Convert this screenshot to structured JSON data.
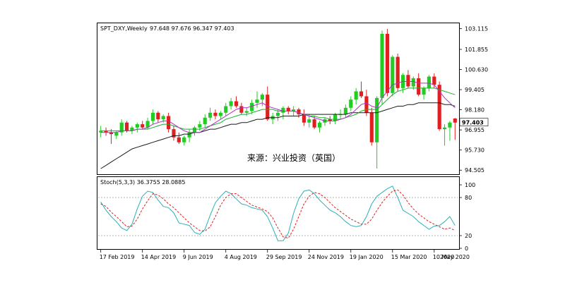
{
  "chart_data": [
    {
      "type": "candlestick",
      "symbol_label": "SPT_DXY,Weekly",
      "ohlc_label": "97.648 97.676 96.347 97.403",
      "watermark": "来源：兴业投资（英国）",
      "last_price_label": "97.403",
      "y_ticks": [
        "103.115",
        "101.855",
        "100.630",
        "99.405",
        "98.180",
        "96.955",
        "95.730",
        "94.505"
      ],
      "ylim": [
        94.3,
        103.4
      ],
      "x_ticks": [
        "17 Feb 2019",
        "14 Apr 2019",
        "9 Jun 2019",
        "4 Aug 2019",
        "29 Sep 2019",
        "24 Nov 2019",
        "19 Jan 2020",
        "15 Mar 2020",
        "10 May 2020"
      ],
      "x_tick_index": [
        0,
        8,
        16,
        24,
        32,
        40,
        48,
        56,
        64
      ],
      "x_end_label": "2020",
      "candles": [
        [
          96.8,
          97.2,
          96.5,
          96.9
        ],
        [
          96.9,
          97.1,
          96.6,
          96.8
        ],
        [
          96.8,
          97.0,
          96.1,
          96.7
        ],
        [
          96.6,
          96.9,
          96.4,
          96.8
        ],
        [
          96.8,
          97.6,
          96.6,
          97.4
        ],
        [
          97.4,
          97.5,
          96.8,
          96.9
        ],
        [
          96.9,
          97.2,
          96.7,
          97.1
        ],
        [
          97.1,
          97.4,
          96.8,
          97.3
        ],
        [
          97.3,
          97.5,
          97.0,
          97.1
        ],
        [
          97.1,
          97.7,
          97.0,
          97.5
        ],
        [
          97.5,
          98.2,
          97.3,
          98.0
        ],
        [
          98.0,
          98.1,
          97.4,
          97.6
        ],
        [
          97.6,
          97.9,
          97.4,
          97.8
        ],
        [
          97.8,
          98.0,
          96.8,
          97.0
        ],
        [
          97.0,
          97.2,
          96.3,
          96.5
        ],
        [
          96.5,
          96.8,
          96.1,
          96.2
        ],
        [
          96.2,
          96.6,
          96.0,
          96.5
        ],
        [
          96.5,
          97.0,
          96.2,
          96.8
        ],
        [
          96.8,
          97.2,
          96.6,
          97.1
        ],
        [
          97.1,
          97.5,
          96.9,
          97.3
        ],
        [
          97.3,
          97.9,
          97.1,
          97.7
        ],
        [
          97.7,
          98.3,
          97.5,
          98.0
        ],
        [
          98.0,
          98.2,
          97.6,
          97.8
        ],
        [
          97.8,
          98.1,
          97.6,
          98.0
        ],
        [
          98.0,
          98.6,
          97.8,
          98.4
        ],
        [
          98.4,
          98.9,
          98.2,
          98.7
        ],
        [
          98.7,
          99.0,
          98.3,
          98.4
        ],
        [
          98.4,
          98.6,
          97.9,
          98.0
        ],
        [
          98.0,
          98.3,
          97.8,
          98.1
        ],
        [
          98.1,
          98.8,
          97.9,
          98.6
        ],
        [
          98.6,
          99.3,
          98.3,
          98.8
        ],
        [
          98.8,
          99.2,
          98.4,
          99.1
        ],
        [
          99.1,
          99.6,
          97.5,
          97.6
        ],
        [
          97.6,
          98.0,
          97.3,
          97.8
        ],
        [
          97.8,
          98.2,
          97.5,
          98.0
        ],
        [
          98.0,
          98.4,
          97.6,
          98.3
        ],
        [
          98.3,
          98.4,
          97.9,
          98.1
        ],
        [
          98.1,
          98.4,
          97.8,
          98.2
        ],
        [
          98.2,
          98.3,
          97.7,
          97.9
        ],
        [
          97.9,
          98.2,
          97.2,
          97.4
        ],
        [
          97.4,
          97.9,
          97.1,
          97.6
        ],
        [
          97.6,
          97.8,
          97.0,
          97.1
        ],
        [
          97.1,
          97.5,
          96.8,
          97.4
        ],
        [
          97.4,
          97.7,
          97.2,
          97.6
        ],
        [
          97.6,
          97.8,
          97.3,
          97.5
        ],
        [
          97.5,
          98.0,
          97.3,
          97.9
        ],
        [
          97.9,
          98.2,
          97.6,
          97.9
        ],
        [
          97.9,
          98.5,
          97.7,
          98.3
        ],
        [
          98.3,
          99.0,
          98.1,
          98.8
        ],
        [
          98.8,
          99.5,
          98.5,
          99.3
        ],
        [
          99.3,
          99.9,
          98.9,
          99.0
        ],
        [
          99.0,
          99.4,
          97.8,
          98.0
        ],
        [
          98.0,
          98.3,
          96.0,
          96.2
        ],
        [
          96.2,
          99.0,
          94.6,
          98.9
        ],
        [
          98.9,
          103.0,
          98.5,
          102.8
        ],
        [
          102.8,
          103.1,
          99.0,
          99.2
        ],
        [
          99.2,
          101.5,
          99.0,
          101.4
        ],
        [
          101.4,
          101.6,
          99.3,
          99.5
        ],
        [
          99.5,
          100.4,
          99.2,
          100.3
        ],
        [
          100.3,
          100.6,
          99.5,
          99.6
        ],
        [
          99.6,
          100.2,
          99.4,
          100.1
        ],
        [
          100.1,
          100.4,
          99.0,
          99.1
        ],
        [
          99.1,
          99.6,
          98.8,
          99.5
        ],
        [
          99.5,
          100.3,
          99.3,
          100.2
        ],
        [
          100.2,
          100.4,
          99.5,
          99.7
        ],
        [
          99.7,
          99.9,
          96.9,
          97.0
        ],
        [
          97.0,
          97.3,
          96.0,
          97.1
        ],
        [
          97.1,
          97.5,
          96.3,
          97.4
        ],
        [
          97.65,
          97.68,
          96.35,
          97.4
        ]
      ],
      "ma_purple": [
        96.8,
        96.8,
        96.8,
        96.8,
        96.9,
        96.9,
        96.9,
        97.0,
        97.0,
        97.1,
        97.3,
        97.4,
        97.5,
        97.5,
        97.3,
        97.1,
        96.9,
        96.8,
        96.8,
        96.8,
        97.0,
        97.2,
        97.4,
        97.6,
        97.8,
        98.0,
        98.2,
        98.3,
        98.3,
        98.4,
        98.5,
        98.6,
        98.4,
        98.3,
        98.2,
        98.1,
        98.1,
        98.1,
        98.0,
        97.9,
        97.8,
        97.7,
        97.6,
        97.5,
        97.5,
        97.5,
        97.6,
        97.7,
        97.9,
        98.2,
        98.5,
        98.6,
        98.4,
        98.3,
        98.9,
        99.3,
        99.7,
        99.8,
        99.9,
        99.9,
        99.9,
        99.8,
        99.8,
        99.8,
        99.7,
        99.3,
        98.9,
        98.6,
        98.3
      ],
      "ma_green": [
        96.9,
        96.9,
        96.9,
        96.9,
        96.9,
        96.9,
        96.9,
        97.0,
        97.0,
        97.0,
        97.1,
        97.2,
        97.3,
        97.3,
        97.2,
        97.1,
        97.0,
        97.0,
        97.0,
        97.0,
        97.1,
        97.2,
        97.3,
        97.4,
        97.6,
        97.7,
        97.8,
        97.9,
        97.9,
        98.0,
        98.1,
        98.2,
        98.2,
        98.2,
        98.1,
        98.1,
        98.1,
        98.1,
        98.0,
        97.9,
        97.8,
        97.8,
        97.7,
        97.7,
        97.6,
        97.6,
        97.6,
        97.7,
        97.8,
        97.9,
        98.1,
        98.2,
        98.2,
        98.2,
        98.5,
        98.8,
        99.1,
        99.3,
        99.4,
        99.5,
        99.5,
        99.5,
        99.5,
        99.5,
        99.5,
        99.4,
        99.3,
        99.2,
        99.1
      ],
      "ma_black": [
        94.6,
        94.8,
        95.0,
        95.2,
        95.4,
        95.6,
        95.8,
        95.9,
        96.0,
        96.1,
        96.2,
        96.3,
        96.4,
        96.5,
        96.6,
        96.6,
        96.7,
        96.7,
        96.8,
        96.8,
        96.9,
        97.0,
        97.0,
        97.1,
        97.2,
        97.3,
        97.3,
        97.4,
        97.4,
        97.5,
        97.6,
        97.6,
        97.7,
        97.7,
        97.7,
        97.8,
        97.8,
        97.8,
        97.8,
        97.9,
        97.9,
        97.9,
        97.9,
        97.9,
        97.9,
        97.9,
        97.9,
        97.9,
        98.0,
        98.0,
        98.0,
        98.0,
        98.0,
        98.0,
        98.1,
        98.2,
        98.3,
        98.4,
        98.4,
        98.5,
        98.5,
        98.6,
        98.6,
        98.6,
        98.6,
        98.6,
        98.5,
        98.5,
        98.4
      ]
    },
    {
      "type": "line",
      "indicator_label": "Stoch(5,3,3) 36.3755 28.0885",
      "y_ticks": [
        "100",
        "80",
        "20",
        "0"
      ],
      "y_tick_values": [
        100,
        80,
        20,
        0
      ],
      "levels": [
        80,
        20
      ],
      "ylim": [
        0,
        100
      ],
      "k_line": [
        73,
        60,
        50,
        42,
        32,
        28,
        38,
        62,
        82,
        90,
        88,
        76,
        66,
        64,
        56,
        40,
        38,
        36,
        25,
        22,
        30,
        52,
        72,
        82,
        90,
        86,
        78,
        70,
        68,
        64,
        62,
        60,
        50,
        32,
        12,
        12,
        24,
        55,
        78,
        90,
        92,
        86,
        76,
        68,
        60,
        56,
        50,
        42,
        36,
        34,
        36,
        50,
        70,
        82,
        88,
        94,
        98,
        80,
        60,
        55,
        50,
        42,
        36,
        30,
        35,
        36,
        42,
        50,
        36
      ],
      "d_line": [
        70,
        66,
        57,
        50,
        42,
        34,
        35,
        46,
        62,
        75,
        86,
        84,
        78,
        70,
        64,
        56,
        48,
        40,
        34,
        28,
        27,
        34,
        50,
        68,
        80,
        86,
        86,
        80,
        74,
        68,
        65,
        62,
        58,
        48,
        32,
        18,
        16,
        30,
        50,
        70,
        82,
        88,
        86,
        80,
        72,
        64,
        58,
        52,
        46,
        42,
        38,
        38,
        46,
        60,
        72,
        82,
        90,
        92,
        84,
        72,
        62,
        54,
        48,
        42,
        38,
        34,
        30,
        32,
        28
      ],
      "k_label": "36.3755",
      "d_label": "28.0885"
    }
  ],
  "colors": {
    "up_body": "#22cc22",
    "down_body": "#e02020",
    "ma_purple": "#b030c8",
    "ma_green": "#18b030",
    "ma_black": "#1a1a1a",
    "k_line": "#2ab0b8",
    "d_line": "#e02020",
    "frame": "#000000",
    "price_tag_bg": "#ffffff"
  }
}
